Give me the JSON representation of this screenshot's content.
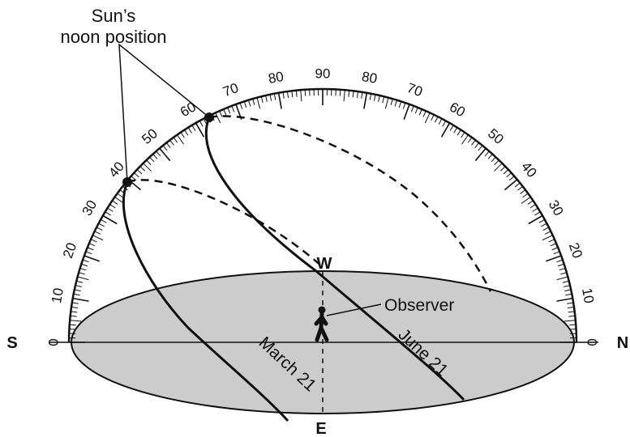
{
  "title": {
    "line1": "Sun’s",
    "line2": "noon position"
  },
  "directions": {
    "south": "S",
    "north": "N",
    "west": "W",
    "east": "E"
  },
  "observer_label": "Observer",
  "sun_paths": [
    {
      "label": "March 21",
      "noon_altitude_deg": 42
    },
    {
      "label": "June 21",
      "noon_altitude_deg": 66
    }
  ],
  "scale": {
    "min_deg": 0,
    "max_deg": 90,
    "label_step": 10,
    "minor_step": 1
  },
  "colors": {
    "horizon_fill": "#cccccc",
    "line": "#111111",
    "background": "#ffffff"
  }
}
